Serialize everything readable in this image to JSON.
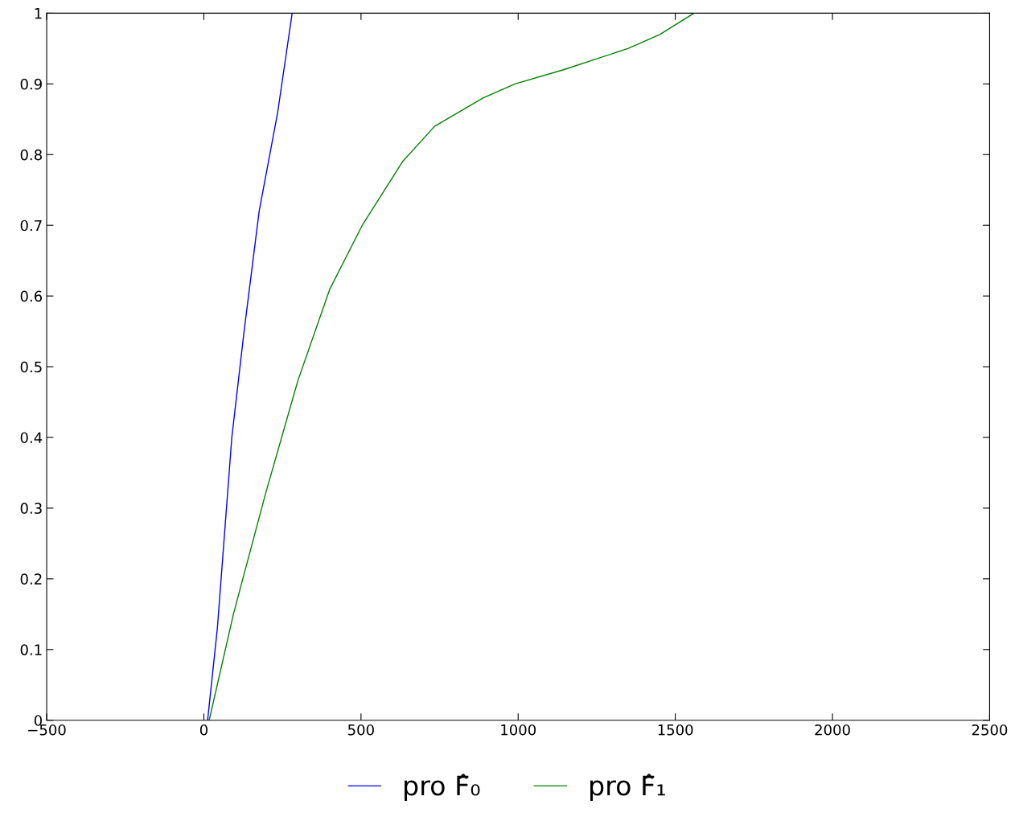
{
  "chart_data": {
    "type": "line",
    "series": [
      {
        "name": "pro F̂₀",
        "color": "#0000ff",
        "x": [
          12,
          43,
          89,
          128,
          176,
          235,
          281
        ],
        "values": [
          0,
          0.13,
          0.4,
          0.55,
          0.72,
          0.86,
          1
        ]
      },
      {
        "name": "pro F̂₁",
        "color": "#008000",
        "x": [
          17,
          94,
          196,
          299,
          401,
          504,
          632,
          734,
          888,
          990,
          1144,
          1349,
          1451,
          1559
        ],
        "values": [
          0,
          0.15,
          0.32,
          0.48,
          0.61,
          0.7,
          0.79,
          0.84,
          0.88,
          0.9,
          0.92,
          0.95,
          0.97,
          1
        ]
      }
    ],
    "xlim": [
      -500,
      2500
    ],
    "xticks": [
      {
        "value": -500,
        "label": "−500"
      },
      0,
      500,
      1000,
      1500,
      2000,
      2500
    ],
    "ylim": [
      0,
      1
    ],
    "yticks": [
      0,
      0.1,
      0.2,
      0.3,
      0.4,
      0.5,
      0.6,
      0.7,
      0.8,
      0.9,
      1
    ],
    "grid": false,
    "legend": "bottom",
    "marker": "none",
    "line_style": "solid"
  }
}
